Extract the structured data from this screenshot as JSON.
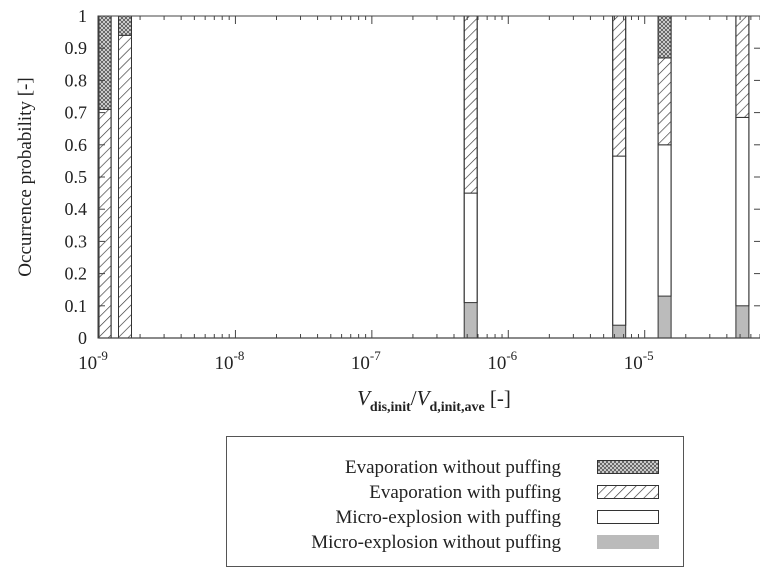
{
  "chart_data": {
    "type": "bar",
    "stacked": true,
    "y_axis": {
      "label": "Occurrence probability [-]",
      "ylim": [
        0,
        1
      ],
      "ticks": [
        "0",
        "0.1",
        "0.2",
        "0.3",
        "0.4",
        "0.5",
        "0.6",
        "0.7",
        "0.8",
        "0.9",
        "1"
      ]
    },
    "x_axis": {
      "scale": "log",
      "xlim": [
        1e-09,
        7e-05
      ],
      "label_var1": "V",
      "label_sub1": "dis,init",
      "label_sep": "/",
      "label_var2": "V",
      "label_sub2": "d,init,ave",
      "label_unit": "[-]",
      "ticks": [
        {
          "value": 1e-09,
          "base": "10",
          "exp": "-9"
        },
        {
          "value": 1e-08,
          "base": "10",
          "exp": "-8"
        },
        {
          "value": 1e-07,
          "base": "10",
          "exp": "-7"
        },
        {
          "value": 1e-06,
          "base": "10",
          "exp": "-6"
        },
        {
          "value": 1e-05,
          "base": "10",
          "exp": "-5"
        }
      ]
    },
    "series_order": [
      "Micro-explosion without puffing",
      "Micro-explosion with puffing",
      "Evaporation with puffing",
      "Evaporation without puffing"
    ],
    "bars": [
      {
        "x": 1.1e-09,
        "values": [
          0.0,
          0.0,
          0.71,
          0.29
        ]
      },
      {
        "x": 1.55e-09,
        "values": [
          0.0,
          0.0,
          0.94,
          0.06
        ]
      },
      {
        "x": 5.3e-07,
        "values": [
          0.11,
          0.34,
          0.55,
          0.0
        ]
      },
      {
        "x": 6.5e-06,
        "values": [
          0.04,
          0.525,
          0.435,
          0.0
        ]
      },
      {
        "x": 1.4e-05,
        "values": [
          0.13,
          0.47,
          0.27,
          0.13
        ]
      },
      {
        "x": 5.2e-05,
        "values": [
          0.1,
          0.585,
          0.315,
          0.0
        ]
      }
    ]
  },
  "legend": {
    "items": [
      {
        "label": "Evaporation without puffing",
        "key": "evap_no_puff"
      },
      {
        "label": "Evaporation with puffing",
        "key": "evap_puff"
      },
      {
        "label": "Micro-explosion with puffing",
        "key": "micro_puff"
      },
      {
        "label": "Micro-explosion without puffing",
        "key": "micro_no_puff"
      }
    ]
  },
  "colors": {
    "axis": "#444444",
    "bar_outline": "#333333",
    "micro_no_puff_fill": "#bbbbbb",
    "micro_puff_fill": "#ffffff"
  }
}
